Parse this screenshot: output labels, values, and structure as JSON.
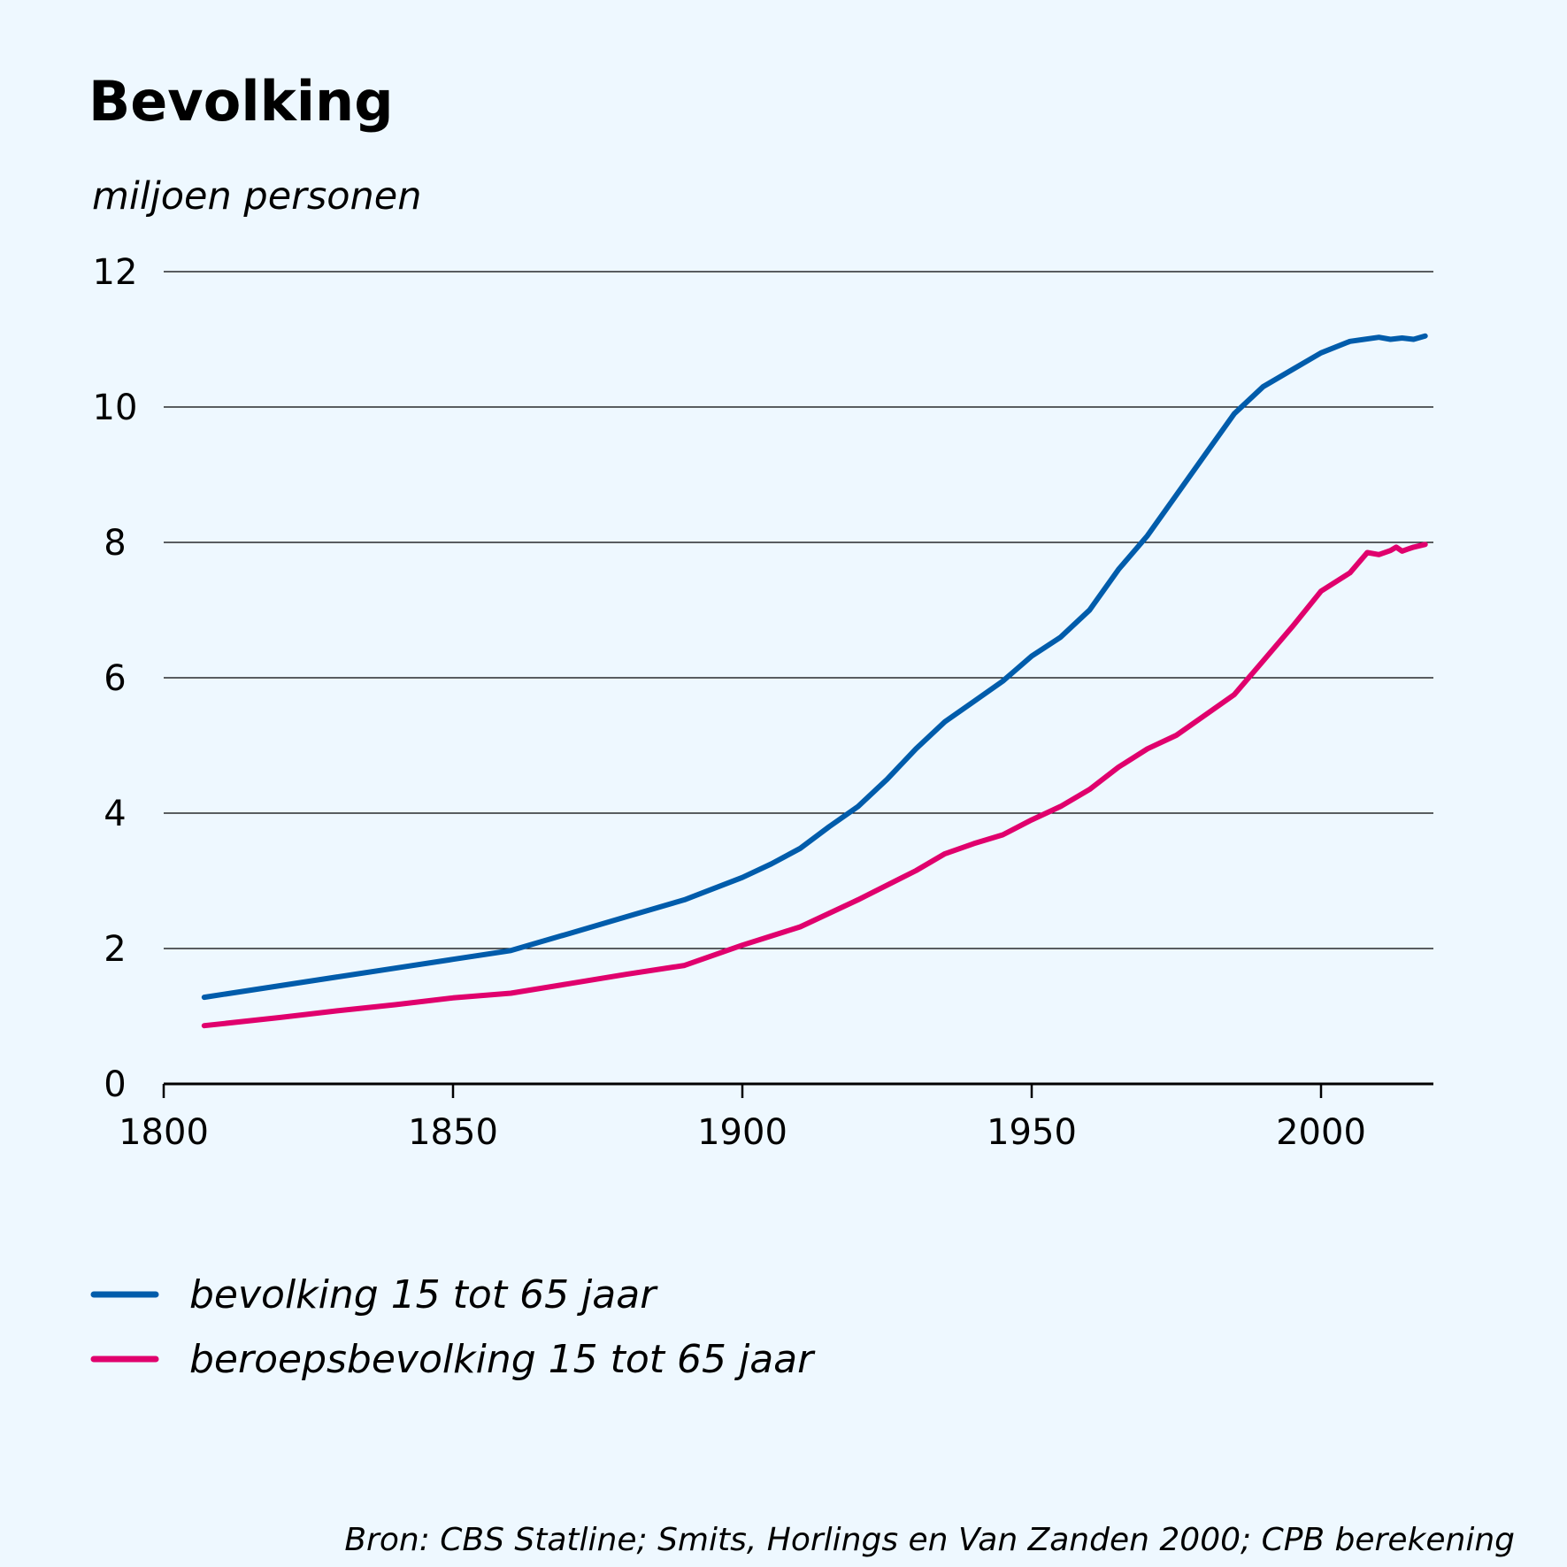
{
  "chart_data": {
    "type": "line",
    "title": "Bevolking",
    "ylabel": "miljoen personen",
    "xlabel": "",
    "xlim": [
      1800,
      2020
    ],
    "ylim": [
      0,
      12
    ],
    "xticks": [
      1800,
      1850,
      1900,
      1950,
      2000
    ],
    "yticks": [
      0,
      2,
      4,
      6,
      8,
      10,
      12
    ],
    "grid": true,
    "legend_position": "bottom-left",
    "source": "Bron: CBS Statline; Smits, Horlings en Van Zanden 2000; CPB berekening",
    "series": [
      {
        "name": "bevolking 15 tot 65 jaar",
        "color": "#005cab",
        "x": [
          1807,
          1820,
          1830,
          1840,
          1850,
          1860,
          1870,
          1880,
          1890,
          1900,
          1905,
          1910,
          1915,
          1920,
          1925,
          1930,
          1935,
          1940,
          1945,
          1950,
          1955,
          1960,
          1965,
          1970,
          1975,
          1980,
          1985,
          1990,
          1995,
          2000,
          2005,
          2010,
          2012,
          2014,
          2016,
          2018
        ],
        "values": [
          1.28,
          1.45,
          1.58,
          1.71,
          1.84,
          1.97,
          2.22,
          2.47,
          2.72,
          3.05,
          3.25,
          3.48,
          3.8,
          4.1,
          4.5,
          4.95,
          5.35,
          5.65,
          5.95,
          6.32,
          6.6,
          7.0,
          7.6,
          8.1,
          8.7,
          9.3,
          9.9,
          10.3,
          10.55,
          10.8,
          10.97,
          11.03,
          11.0,
          11.02,
          11.0,
          11.05
        ]
      },
      {
        "name": "beroepsbevolking 15 tot 65 jaar",
        "color": "#e0006d",
        "x": [
          1807,
          1820,
          1830,
          1840,
          1850,
          1860,
          1870,
          1880,
          1890,
          1900,
          1910,
          1920,
          1930,
          1935,
          1940,
          1945,
          1950,
          1955,
          1960,
          1965,
          1970,
          1975,
          1980,
          1985,
          1990,
          1995,
          2000,
          2005,
          2008,
          2010,
          2012,
          2013,
          2014,
          2015,
          2016,
          2018
        ],
        "values": [
          0.86,
          0.98,
          1.08,
          1.17,
          1.27,
          1.34,
          1.48,
          1.62,
          1.75,
          2.05,
          2.32,
          2.72,
          3.15,
          3.4,
          3.55,
          3.68,
          3.9,
          4.1,
          4.35,
          4.68,
          4.95,
          5.15,
          5.45,
          5.75,
          6.25,
          6.75,
          7.28,
          7.55,
          7.85,
          7.82,
          7.88,
          7.93,
          7.87,
          7.9,
          7.93,
          7.97
        ]
      }
    ]
  }
}
